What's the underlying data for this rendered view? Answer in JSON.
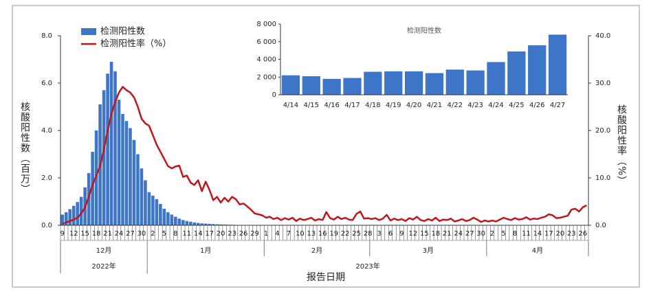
{
  "chart_data": [
    {
      "type": "bar",
      "x_label": "报告日期",
      "y_label": "核酸阳性数（百万）",
      "y2_label": "核酸阳性率（%）",
      "categories": [
        "9",
        null,
        null,
        "12",
        null,
        null,
        "15",
        null,
        null,
        "18",
        null,
        null,
        "21",
        null,
        null,
        "24",
        null,
        null,
        "27",
        null,
        null,
        "30",
        null,
        null,
        "2",
        null,
        null,
        "5",
        null,
        null,
        "8",
        null,
        null,
        "11",
        null,
        null,
        "14",
        null,
        null,
        "17",
        null,
        null,
        "20",
        null,
        null,
        "23",
        null,
        null,
        "26",
        null,
        null,
        "29",
        null,
        null,
        "1",
        null,
        null,
        "4",
        null,
        null,
        "7",
        null,
        null,
        "10",
        null,
        null,
        "13",
        null,
        null,
        "16",
        null,
        null,
        "19",
        null,
        null,
        "22",
        null,
        null,
        "25",
        null,
        null,
        "28",
        null,
        null,
        "3",
        null,
        null,
        "6",
        null,
        null,
        "9",
        null,
        null,
        "12",
        null,
        null,
        "15",
        null,
        null,
        "18",
        null,
        null,
        "21",
        null,
        null,
        "24",
        null,
        null,
        "27",
        null,
        null,
        "30",
        null,
        null,
        "2",
        null,
        null,
        "5",
        null,
        null,
        "8",
        null,
        null,
        "11",
        null,
        null,
        "14",
        null,
        null,
        "17",
        null,
        null,
        "20",
        null,
        null,
        "23",
        null,
        null,
        "26",
        null
      ],
      "months": [
        "12月",
        "1月",
        "2月",
        "3月",
        "4月"
      ],
      "years": [
        "2022年",
        "2023年"
      ],
      "series": [
        {
          "name": "检测阳性数",
          "type": "bar",
          "color": "#3d76c9",
          "values": [
            0.45,
            0.55,
            0.68,
            0.82,
            0.98,
            1.2,
            1.6,
            2.2,
            3.1,
            4.0,
            5.1,
            5.7,
            6.4,
            6.9,
            6.5,
            5.3,
            4.7,
            4.4,
            4.1,
            3.6,
            3.0,
            2.4,
            1.9,
            1.4,
            1.25,
            1.1,
            0.9,
            0.7,
            0.55,
            0.45,
            0.36,
            0.28,
            0.22,
            0.18,
            0.15,
            0.12,
            0.1,
            0.08,
            0.07,
            0.06,
            0.05,
            0.04,
            0.035,
            0.03,
            0.025,
            0.02,
            0.015,
            0.01,
            0.008,
            0.006,
            0.005,
            0.004,
            0.004,
            0.003,
            0.003,
            0.003,
            0.003,
            0.003,
            0.003,
            0.003,
            0.003,
            0.003,
            0.003,
            0.003,
            0.002,
            0.002,
            0.002,
            0.002,
            0.002,
            0.002,
            0.002,
            0.002,
            0.002,
            0.002,
            0.002,
            0.002,
            0.002,
            0.002,
            0.002,
            0.002,
            0.002,
            0.002,
            0.002,
            0.002,
            0.002,
            0.002,
            0.002,
            0.002,
            0.002,
            0.002,
            0.002,
            0.002,
            0.002,
            0.002,
            0.002,
            0.002,
            0.002,
            0.002,
            0.002,
            0.002,
            0.002,
            0.002,
            0.002,
            0.002,
            0.002,
            0.002,
            0.002,
            0.002,
            0.002,
            0.002,
            0.002,
            0.002,
            0.002,
            0.002,
            0.002,
            0.002,
            0.002,
            0.002,
            0.002,
            0.002,
            0.002,
            0.002,
            0.002,
            0.002,
            0.002,
            0.002,
            0.0022,
            0.0021,
            0.0018,
            0.0019,
            0.0026,
            0.00265,
            0.00265,
            0.00245,
            0.00285,
            0.00275,
            0.0037,
            0.0049,
            0.0056,
            0.0068
          ]
        },
        {
          "name": "检测阳性率（%）",
          "type": "line",
          "axis": "y2",
          "color": "#c0151b",
          "values": [
            0.3,
            0.6,
            0.9,
            1.2,
            1.6,
            2.5,
            3.8,
            6,
            8.5,
            10.5,
            12.5,
            16,
            20,
            23.5,
            26,
            28,
            29.2,
            28.5,
            28,
            27,
            25,
            22.5,
            21.5,
            21,
            19,
            17,
            15.5,
            14,
            12.5,
            12,
            12.4,
            12.6,
            10.2,
            10.5,
            9,
            8.5,
            9.5,
            7.2,
            9.2,
            7.5,
            5.3,
            6,
            4.8,
            5.8,
            5,
            6,
            5.5,
            4.4,
            4.6,
            4,
            3.3,
            2.5,
            2.3,
            2.1,
            1.6,
            1.8,
            1.3,
            1.6,
            1.1,
            1.5,
            1.2,
            1.6,
            0.9,
            1.4,
            1.1,
            1.3,
            1.6,
            1.0,
            1.3,
            1.1,
            2.8,
            1.5,
            1.2,
            1.8,
            1.3,
            1.6,
            1.2,
            1.1,
            2.4,
            2.9,
            1.4,
            1.5,
            1.3,
            1.5,
            1.1,
            1.4,
            2.2,
            1.0,
            1.4,
            1.1,
            1.3,
            0.9,
            1.5,
            1.2,
            1.8,
            1.1,
            0.9,
            1.3,
            1.0,
            1.6,
            0.9,
            1.2,
            1.1,
            1.4,
            0.8,
            1.0,
            1.3,
            0.9,
            1.1,
            1.6,
            1.2,
            0.7,
            1.0,
            0.8,
            1.0,
            0.8,
            1.2,
            1.6,
            1.3,
            1.1,
            1.5,
            1.2,
            1.3,
            1.7,
            1.2,
            1.4,
            1.3,
            1.6,
            1.8,
            2.3,
            2.1,
            1.5,
            1.6,
            1.8,
            2.0,
            3.3,
            3.5,
            2.9,
            3.8,
            4.2
          ]
        }
      ],
      "ylim": [
        0,
        8
      ],
      "yticks": [
        {
          "value": 0,
          "label": "0.0"
        },
        {
          "value": 2,
          "label": "2.0"
        },
        {
          "value": 4,
          "label": "4.0"
        },
        {
          "value": 6,
          "label": "6.0"
        },
        {
          "value": 8,
          "label": "8.0"
        }
      ],
      "y2lim": [
        0,
        40
      ],
      "y2ticks": [
        {
          "value": 0,
          "label": "0.0"
        },
        {
          "value": 10,
          "label": "10.0"
        },
        {
          "value": 20,
          "label": "20.0"
        },
        {
          "value": 30,
          "label": "30.0"
        },
        {
          "value": 40,
          "label": "40.0"
        }
      ],
      "legend": "upper-left"
    },
    {
      "type": "bar",
      "title": "检测阳性数",
      "color": "#3d76c9",
      "categories": [
        "4/14",
        "4/15",
        "4/16",
        "4/17",
        "4/18",
        "4/19",
        "4/20",
        "4/21",
        "4/22",
        "4/23",
        "4/24",
        "4/25",
        "4/26",
        "4/27"
      ],
      "values": [
        2200,
        2100,
        1800,
        1900,
        2600,
        2650,
        2650,
        2450,
        2850,
        2750,
        3700,
        4900,
        5600,
        6800
      ],
      "ylim": [
        0,
        8000
      ],
      "yticks": [
        0,
        {
          "value": 2000,
          "label": "2 000"
        },
        {
          "value": 4000,
          "label": "4 000"
        },
        {
          "value": 6000,
          "label": "6 000"
        },
        {
          "value": 8000,
          "label": "8 000"
        }
      ]
    }
  ]
}
